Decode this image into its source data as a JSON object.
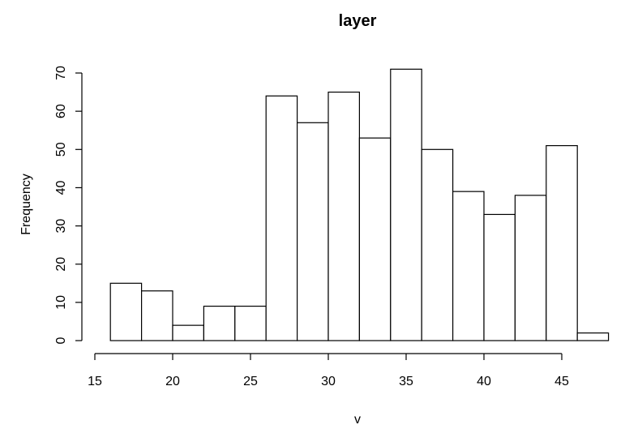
{
  "chart_data": {
    "type": "bar",
    "title": "layer",
    "xlabel": "v",
    "ylabel": "Frequency",
    "bin_edges": [
      16,
      18,
      20,
      22,
      24,
      26,
      28,
      30,
      32,
      34,
      36,
      38,
      40,
      42,
      44,
      46,
      48
    ],
    "values": [
      15,
      13,
      4,
      9,
      9,
      64,
      57,
      65,
      53,
      71,
      50,
      39,
      33,
      38,
      51,
      2
    ],
    "xticks": [
      15,
      20,
      25,
      30,
      35,
      40,
      45
    ],
    "yticks": [
      0,
      10,
      20,
      30,
      40,
      50,
      60,
      70
    ],
    "xlim": [
      15,
      48
    ],
    "ylim": [
      0,
      70
    ],
    "grid": false,
    "colors": {
      "bar_fill": "#ffffff",
      "bar_stroke": "#000000"
    }
  }
}
